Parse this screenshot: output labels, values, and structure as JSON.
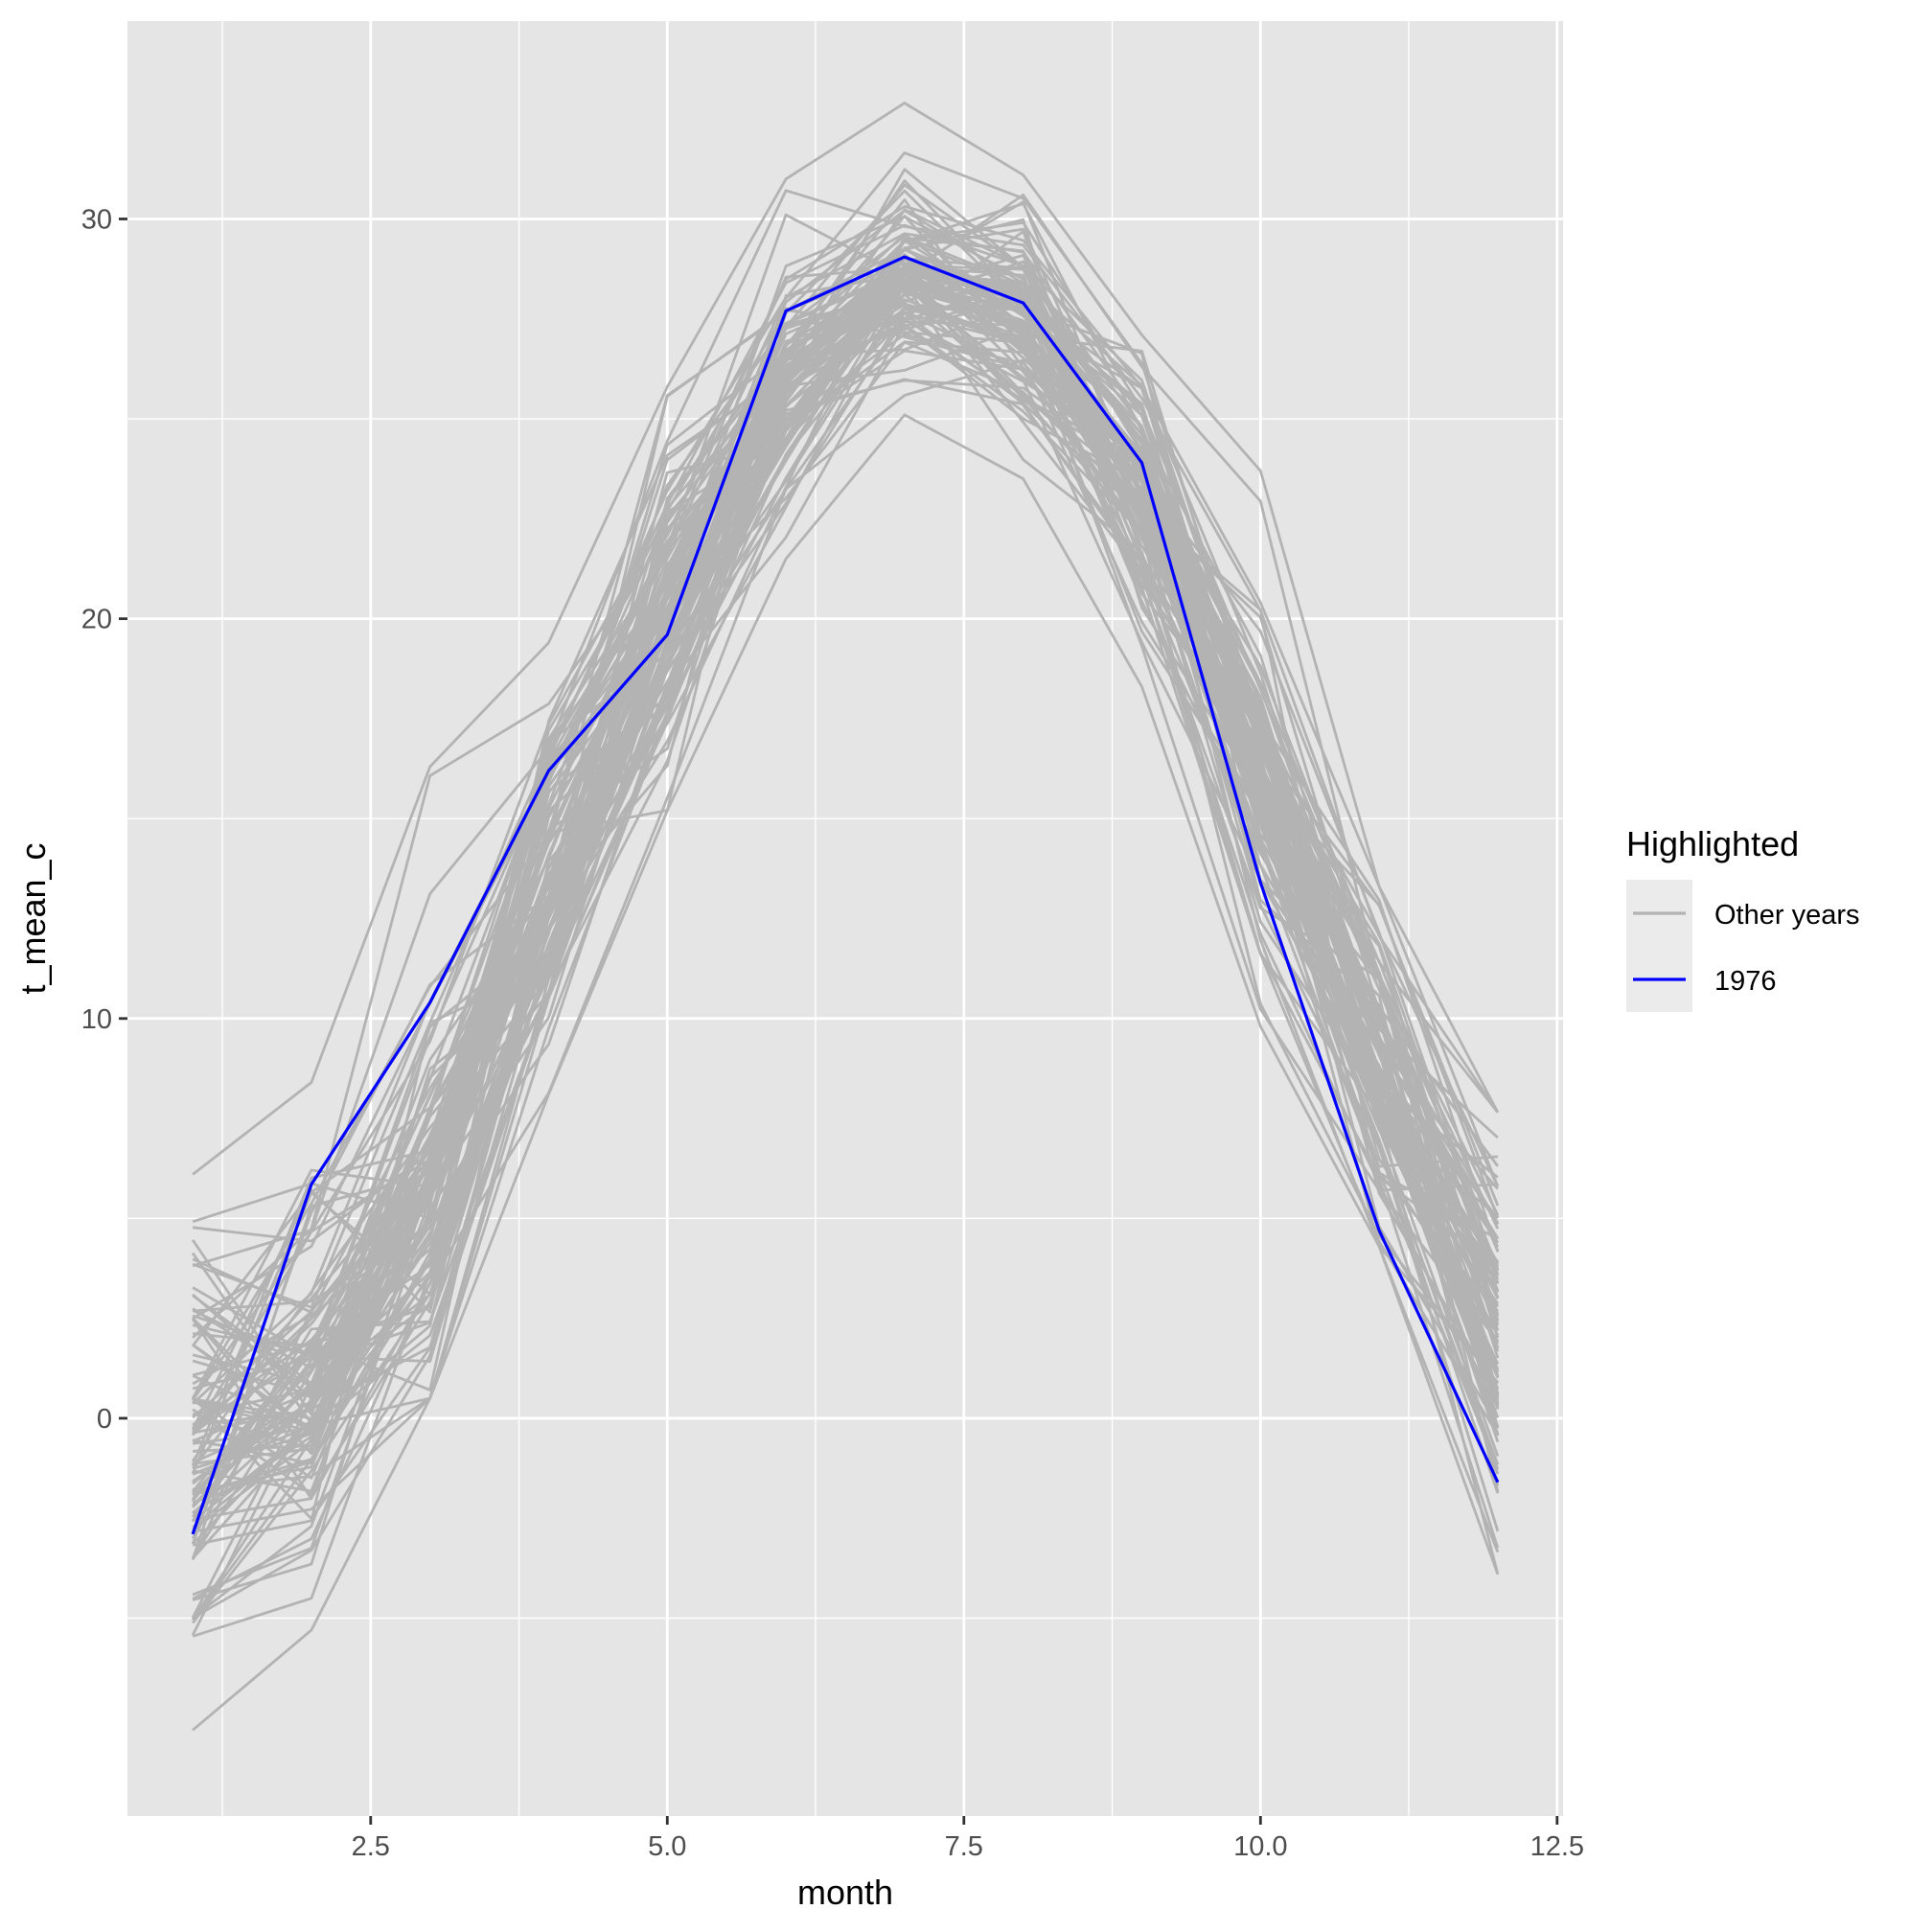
{
  "chart_data": {
    "type": "line",
    "title": "",
    "xlabel": "month",
    "ylabel": "t_mean_c",
    "xlim": [
      0.45,
      12.55
    ],
    "ylim": [
      -9.95,
      34.95
    ],
    "x_ticks": [
      2.5,
      5.0,
      7.5,
      10.0,
      12.5
    ],
    "x_tick_labels": [
      "2.5",
      "5.0",
      "7.5",
      "10.0",
      "12.5"
    ],
    "x_minor_grid": [
      1.25,
      3.75,
      6.25,
      8.75,
      11.25
    ],
    "y_ticks": [
      0,
      10,
      20,
      30
    ],
    "y_tick_labels": [
      "0",
      "10",
      "20",
      "30"
    ],
    "y_minor_grid": [
      -5,
      5,
      15,
      25
    ],
    "grid": true,
    "panel_background": "#E5E5E5",
    "grid_color": "#FFFFFF",
    "legend": {
      "title": "Highlighted",
      "position": "right",
      "entries": [
        {
          "label": "Other years",
          "color": "#B3B3B3"
        },
        {
          "label": "1976",
          "color": "#0000FF"
        }
      ]
    },
    "x": [
      1,
      2,
      3,
      4,
      5,
      6,
      7,
      8,
      9,
      10,
      11,
      12
    ],
    "series": [
      {
        "name": "1976",
        "color": "#0000FF",
        "values": [
          -2.9,
          5.85,
          10.4,
          16.2,
          19.6,
          27.7,
          29.05,
          27.9,
          23.9,
          13.4,
          4.7,
          -1.6
        ]
      }
    ],
    "other_years": {
      "name": "Other years",
      "color": "#B3B3B3",
      "count": 110,
      "monthly_mean": [
        -0.5,
        1.0,
        6.0,
        13.5,
        20.5,
        26.0,
        28.6,
        27.5,
        23.0,
        16.0,
        9.0,
        2.0
      ],
      "monthly_spread": [
        2.6,
        2.4,
        2.6,
        2.2,
        2.0,
        1.6,
        1.2,
        1.2,
        1.6,
        2.0,
        1.9,
        2.2
      ],
      "monthly_max": [
        6.1,
        8.4,
        16.3,
        19.4,
        25.8,
        31.0,
        32.9,
        31.1,
        27.1,
        23.7,
        13.3,
        7.65
      ],
      "monthly_min": [
        -7.8,
        -5.3,
        0.5,
        8.1,
        15.2,
        21.5,
        25.1,
        23.5,
        18.3,
        9.8,
        4.3,
        -3.9
      ]
    }
  }
}
